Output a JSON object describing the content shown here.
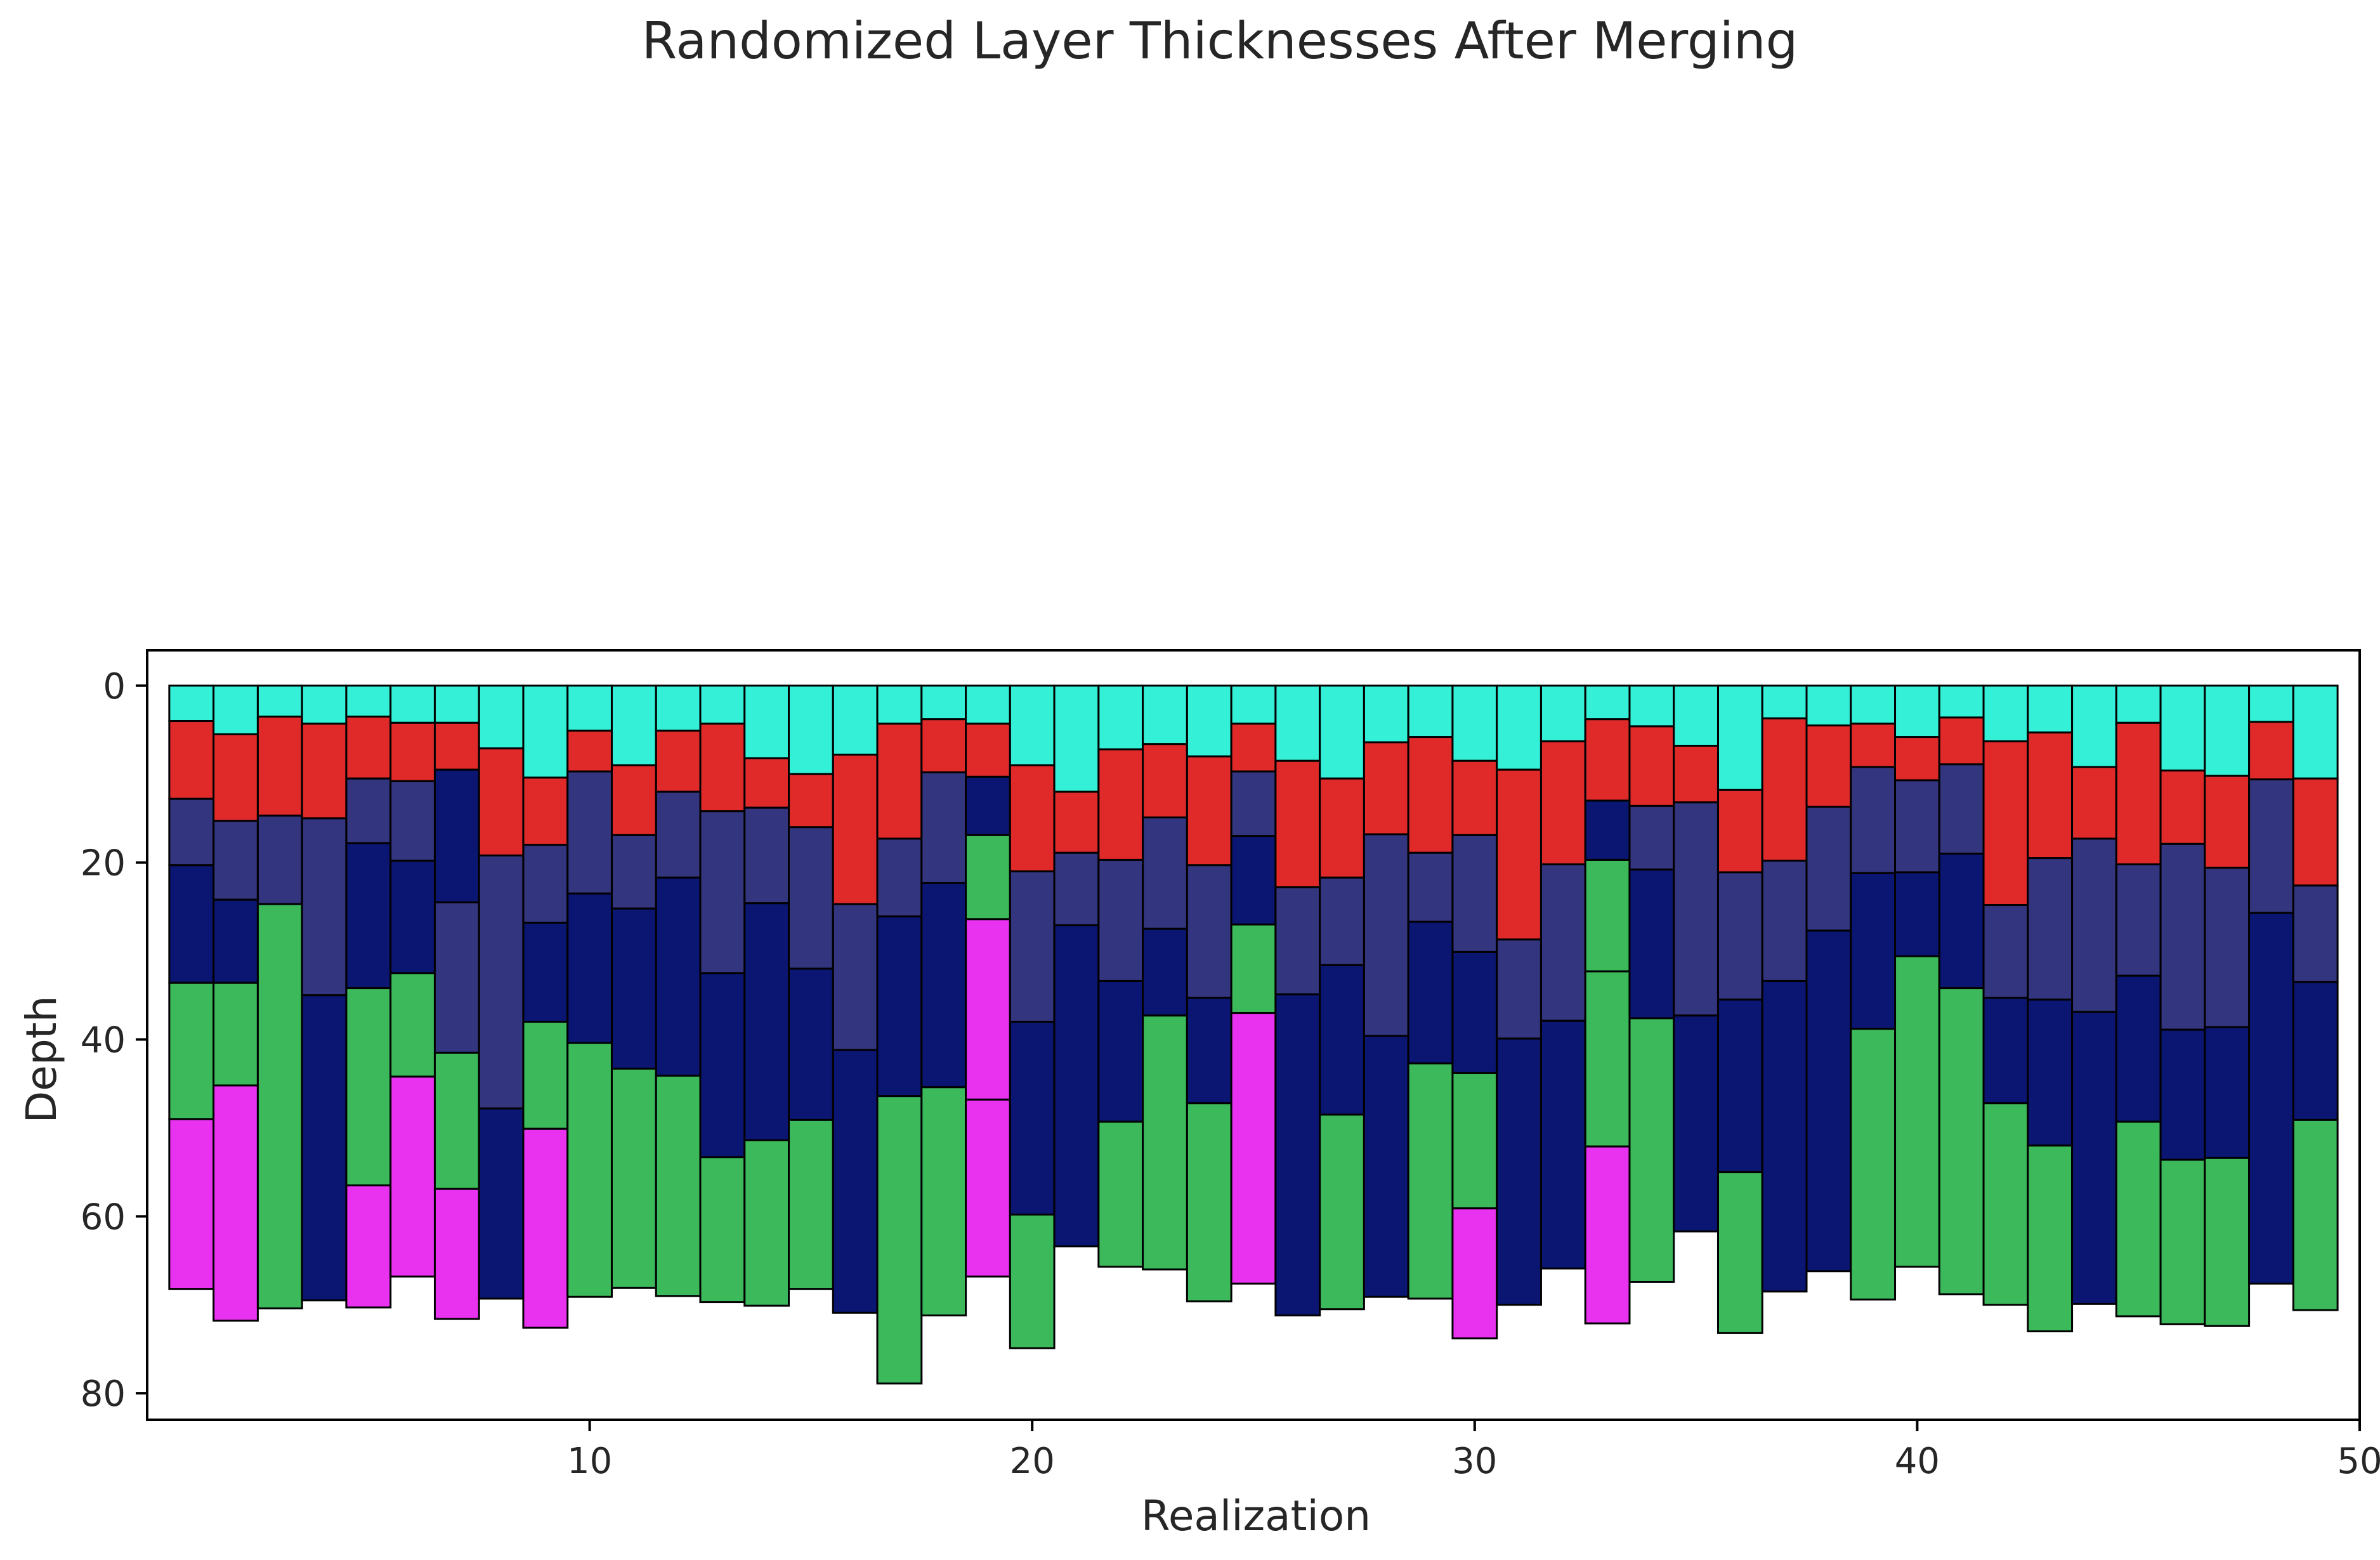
{
  "chart_data": {
    "type": "bar",
    "subtype": "stacked-interval",
    "title": "Randomized Layer Thicknesses After Merging",
    "xlabel": "Realization",
    "ylabel": "Depth",
    "xlim": [
      0,
      50
    ],
    "ylim": [
      83,
      -4
    ],
    "y_inverted": true,
    "x_ticks": [
      "10",
      "20",
      "30",
      "40",
      "50"
    ],
    "y_ticks": [
      "0",
      "20",
      "40",
      "60",
      "80"
    ],
    "grid": false,
    "legend": "none",
    "edge_color": "#000000",
    "layer_colors": {
      "C": "#33f0d7",
      "R": "#e02a2a",
      "S": "#33357e",
      "N": "#0b1673",
      "G": "#3cb95a",
      "M": "#e832ef"
    },
    "realizations": [
      {
        "x": 1,
        "layers": [
          [
            "C",
            4
          ],
          [
            "R",
            12.8
          ],
          [
            "S",
            20.3
          ],
          [
            "N",
            33.6
          ],
          [
            "G",
            49
          ],
          [
            "M",
            68.2
          ]
        ]
      },
      {
        "x": 2,
        "layers": [
          [
            "C",
            5.5
          ],
          [
            "R",
            15.3
          ],
          [
            "S",
            24.2
          ],
          [
            "N",
            33.6
          ],
          [
            "G",
            45.2
          ],
          [
            "M",
            71.8
          ]
        ]
      },
      {
        "x": 3,
        "layers": [
          [
            "C",
            3.5
          ],
          [
            "R",
            14.7
          ],
          [
            "S",
            24.7
          ],
          [
            "G",
            70.4
          ]
        ]
      },
      {
        "x": 4,
        "layers": [
          [
            "C",
            4.3
          ],
          [
            "R",
            15
          ],
          [
            "S",
            35
          ],
          [
            "N",
            69.5
          ]
        ]
      },
      {
        "x": 5,
        "layers": [
          [
            "C",
            3.5
          ],
          [
            "R",
            10.5
          ],
          [
            "S",
            17.8
          ],
          [
            "N",
            34.2
          ],
          [
            "G",
            56.5
          ],
          [
            "M",
            70.3
          ]
        ]
      },
      {
        "x": 6,
        "layers": [
          [
            "C",
            4.2
          ],
          [
            "R",
            10.8
          ],
          [
            "S",
            19.8
          ],
          [
            "N",
            32.5
          ],
          [
            "G",
            44.2
          ],
          [
            "M",
            66.8
          ]
        ]
      },
      {
        "x": 7,
        "layers": [
          [
            "C",
            4.2
          ],
          [
            "R",
            9.5
          ],
          [
            "N",
            24.5
          ],
          [
            "S",
            41.5
          ],
          [
            "G",
            56.9
          ],
          [
            "M",
            71.6
          ]
        ]
      },
      {
        "x": 8,
        "layers": [
          [
            "C",
            7.1
          ],
          [
            "R",
            19.2
          ],
          [
            "S",
            47.8
          ],
          [
            "N",
            69.3
          ]
        ]
      },
      {
        "x": 9,
        "layers": [
          [
            "C",
            10.4
          ],
          [
            "R",
            18
          ],
          [
            "S",
            26.8
          ],
          [
            "N",
            38
          ],
          [
            "G",
            50.1
          ],
          [
            "M",
            72.6
          ]
        ]
      },
      {
        "x": 10,
        "layers": [
          [
            "C",
            5.1
          ],
          [
            "R",
            9.7
          ],
          [
            "S",
            23.5
          ],
          [
            "N",
            40.4
          ],
          [
            "G",
            69.1
          ]
        ]
      },
      {
        "x": 11,
        "layers": [
          [
            "C",
            9
          ],
          [
            "R",
            16.9
          ],
          [
            "S",
            25.2
          ],
          [
            "N",
            43.3
          ],
          [
            "G",
            68.1
          ]
        ]
      },
      {
        "x": 12,
        "layers": [
          [
            "C",
            5.1
          ],
          [
            "R",
            12
          ],
          [
            "S",
            21.7
          ],
          [
            "N",
            44.1
          ],
          [
            "G",
            69
          ]
        ]
      },
      {
        "x": 13,
        "layers": [
          [
            "C",
            4.3
          ],
          [
            "R",
            14.2
          ],
          [
            "S",
            32.5
          ],
          [
            "N",
            53.3
          ],
          [
            "G",
            69.7
          ]
        ]
      },
      {
        "x": 14,
        "layers": [
          [
            "C",
            8.2
          ],
          [
            "R",
            13.8
          ],
          [
            "S",
            24.6
          ],
          [
            "N",
            51.4
          ],
          [
            "G",
            70.1
          ]
        ]
      },
      {
        "x": 15,
        "layers": [
          [
            "C",
            10
          ],
          [
            "R",
            16
          ],
          [
            "S",
            32
          ],
          [
            "N",
            49.1
          ],
          [
            "G",
            68.2
          ]
        ]
      },
      {
        "x": 16,
        "layers": [
          [
            "C",
            7.8
          ],
          [
            "R",
            24.7
          ],
          [
            "S",
            41.2
          ],
          [
            "N",
            70.9
          ]
        ]
      },
      {
        "x": 17,
        "layers": [
          [
            "C",
            4.3
          ],
          [
            "R",
            17.3
          ],
          [
            "S",
            26.1
          ],
          [
            "N",
            46.4
          ],
          [
            "G",
            78.9
          ]
        ]
      },
      {
        "x": 18,
        "layers": [
          [
            "C",
            3.8
          ],
          [
            "R",
            9.8
          ],
          [
            "S",
            22.3
          ],
          [
            "N",
            45.4
          ],
          [
            "G",
            71.2
          ]
        ]
      },
      {
        "x": 19,
        "layers": [
          [
            "C",
            4.3
          ],
          [
            "R",
            10.3
          ],
          [
            "N",
            16.9
          ],
          [
            "G",
            26.4
          ],
          [
            "M",
            46.8
          ],
          [
            "M2",
            66.8
          ]
        ]
      },
      {
        "x": 20,
        "layers": [
          [
            "C",
            9
          ],
          [
            "R",
            21
          ],
          [
            "S",
            38
          ],
          [
            "N",
            59.8
          ],
          [
            "G",
            74.9
          ]
        ]
      },
      {
        "x": 21,
        "layers": [
          [
            "C",
            12
          ],
          [
            "R",
            18.9
          ],
          [
            "S",
            27.1
          ],
          [
            "N",
            63.4
          ]
        ]
      },
      {
        "x": 22,
        "layers": [
          [
            "C",
            7.2
          ],
          [
            "R",
            19.7
          ],
          [
            "S",
            33.4
          ],
          [
            "N",
            49.3
          ],
          [
            "G",
            65.7
          ]
        ]
      },
      {
        "x": 23,
        "layers": [
          [
            "C",
            6.6
          ],
          [
            "R",
            14.9
          ],
          [
            "S",
            27.5
          ],
          [
            "N",
            37.3
          ],
          [
            "G",
            66
          ]
        ]
      },
      {
        "x": 24,
        "layers": [
          [
            "C",
            8
          ],
          [
            "R",
            20.3
          ],
          [
            "S",
            35.3
          ],
          [
            "N",
            47.2
          ],
          [
            "G",
            69.6
          ]
        ]
      },
      {
        "x": 25,
        "layers": [
          [
            "C",
            4.3
          ],
          [
            "R",
            9.7
          ],
          [
            "S",
            17
          ],
          [
            "N",
            27
          ],
          [
            "G",
            37
          ],
          [
            "M",
            67.6
          ]
        ]
      },
      {
        "x": 26,
        "layers": [
          [
            "C",
            8.5
          ],
          [
            "R",
            22.8
          ],
          [
            "S",
            34.9
          ],
          [
            "N",
            71.2
          ]
        ]
      },
      {
        "x": 27,
        "layers": [
          [
            "C",
            10.5
          ],
          [
            "R",
            21.7
          ],
          [
            "S",
            31.6
          ],
          [
            "N",
            48.5
          ],
          [
            "G",
            70.5
          ]
        ]
      },
      {
        "x": 28,
        "layers": [
          [
            "C",
            6.4
          ],
          [
            "R",
            16.8
          ],
          [
            "S",
            39.6
          ],
          [
            "N",
            69.1
          ]
        ]
      },
      {
        "x": 29,
        "layers": [
          [
            "C",
            5.8
          ],
          [
            "R",
            18.9
          ],
          [
            "S",
            26.7
          ],
          [
            "N",
            42.7
          ],
          [
            "G",
            69.3
          ]
        ]
      },
      {
        "x": 30,
        "layers": [
          [
            "C",
            8.5
          ],
          [
            "R",
            16.9
          ],
          [
            "S",
            30.1
          ],
          [
            "N",
            43.8
          ],
          [
            "G",
            59.1
          ],
          [
            "M",
            73.8
          ]
        ]
      },
      {
        "x": 31,
        "layers": [
          [
            "C",
            9.5
          ],
          [
            "R",
            28.7
          ],
          [
            "S",
            39.9
          ],
          [
            "N",
            70
          ]
        ]
      },
      {
        "x": 32,
        "layers": [
          [
            "C",
            6.3
          ],
          [
            "R",
            20.2
          ],
          [
            "S",
            37.9
          ],
          [
            "N",
            65.9
          ]
        ]
      },
      {
        "x": 33,
        "layers": [
          [
            "C",
            3.8
          ],
          [
            "R",
            13
          ],
          [
            "N",
            19.7
          ],
          [
            "G",
            32.3
          ],
          [
            "G2",
            52.1
          ],
          [
            "M",
            72.1
          ]
        ]
      },
      {
        "x": 34,
        "layers": [
          [
            "C",
            4.6
          ],
          [
            "R",
            13.6
          ],
          [
            "S",
            20.8
          ],
          [
            "N",
            37.6
          ],
          [
            "G",
            67.4
          ]
        ]
      },
      {
        "x": 35,
        "layers": [
          [
            "C",
            6.8
          ],
          [
            "R",
            13.2
          ],
          [
            "S",
            37.3
          ],
          [
            "N",
            61.7
          ]
        ]
      },
      {
        "x": 36,
        "layers": [
          [
            "C",
            11.8
          ],
          [
            "R",
            21.1
          ],
          [
            "S",
            35.5
          ],
          [
            "N",
            55
          ],
          [
            "G",
            73.2
          ]
        ]
      },
      {
        "x": 37,
        "layers": [
          [
            "C",
            3.7
          ],
          [
            "R",
            19.8
          ],
          [
            "S",
            33.4
          ],
          [
            "N",
            68.5
          ]
        ]
      },
      {
        "x": 38,
        "layers": [
          [
            "C",
            4.5
          ],
          [
            "R",
            13.7
          ],
          [
            "S",
            27.7
          ],
          [
            "N",
            66.2
          ]
        ]
      },
      {
        "x": 39,
        "layers": [
          [
            "C",
            4.3
          ],
          [
            "R",
            9.2
          ],
          [
            "S",
            21.2
          ],
          [
            "N",
            38.8
          ],
          [
            "G",
            69.4
          ]
        ]
      },
      {
        "x": 40,
        "layers": [
          [
            "C",
            5.8
          ],
          [
            "R",
            10.7
          ],
          [
            "S",
            21.1
          ],
          [
            "N",
            30.6
          ],
          [
            "G",
            65.7
          ]
        ]
      },
      {
        "x": 41,
        "layers": [
          [
            "C",
            3.6
          ],
          [
            "R",
            8.9
          ],
          [
            "S",
            19
          ],
          [
            "N",
            34.2
          ],
          [
            "G",
            68.8
          ]
        ]
      },
      {
        "x": 42,
        "layers": [
          [
            "C",
            6.3
          ],
          [
            "R",
            24.8
          ],
          [
            "S",
            35.3
          ],
          [
            "N",
            47.2
          ],
          [
            "G",
            70
          ]
        ]
      },
      {
        "x": 43,
        "layers": [
          [
            "C",
            5.3
          ],
          [
            "R",
            19.5
          ],
          [
            "S",
            35.5
          ],
          [
            "N",
            52
          ],
          [
            "G",
            73
          ]
        ]
      },
      {
        "x": 44,
        "layers": [
          [
            "C",
            9.2
          ],
          [
            "R",
            17.3
          ],
          [
            "S",
            36.9
          ],
          [
            "N",
            69.9
          ]
        ]
      },
      {
        "x": 45,
        "layers": [
          [
            "C",
            4.2
          ],
          [
            "R",
            20.2
          ],
          [
            "S",
            32.8
          ],
          [
            "N",
            49.3
          ],
          [
            "G",
            71.3
          ]
        ]
      },
      {
        "x": 46,
        "layers": [
          [
            "C",
            9.6
          ],
          [
            "R",
            17.9
          ],
          [
            "S",
            38.9
          ],
          [
            "N",
            53.6
          ],
          [
            "G",
            72.2
          ]
        ]
      },
      {
        "x": 47,
        "layers": [
          [
            "C",
            10.2
          ],
          [
            "R",
            20.6
          ],
          [
            "S",
            38.6
          ],
          [
            "N",
            53.4
          ],
          [
            "G",
            72.4
          ]
        ]
      },
      {
        "x": 48,
        "layers": [
          [
            "C",
            4.1
          ],
          [
            "R",
            10.6
          ],
          [
            "S",
            25.7
          ],
          [
            "N",
            67.6
          ]
        ]
      },
      {
        "x": 49,
        "layers": [
          [
            "C",
            10.5
          ],
          [
            "R",
            22.6
          ],
          [
            "S",
            33.5
          ],
          [
            "N",
            49.1
          ],
          [
            "G",
            70.6
          ]
        ]
      }
    ]
  }
}
